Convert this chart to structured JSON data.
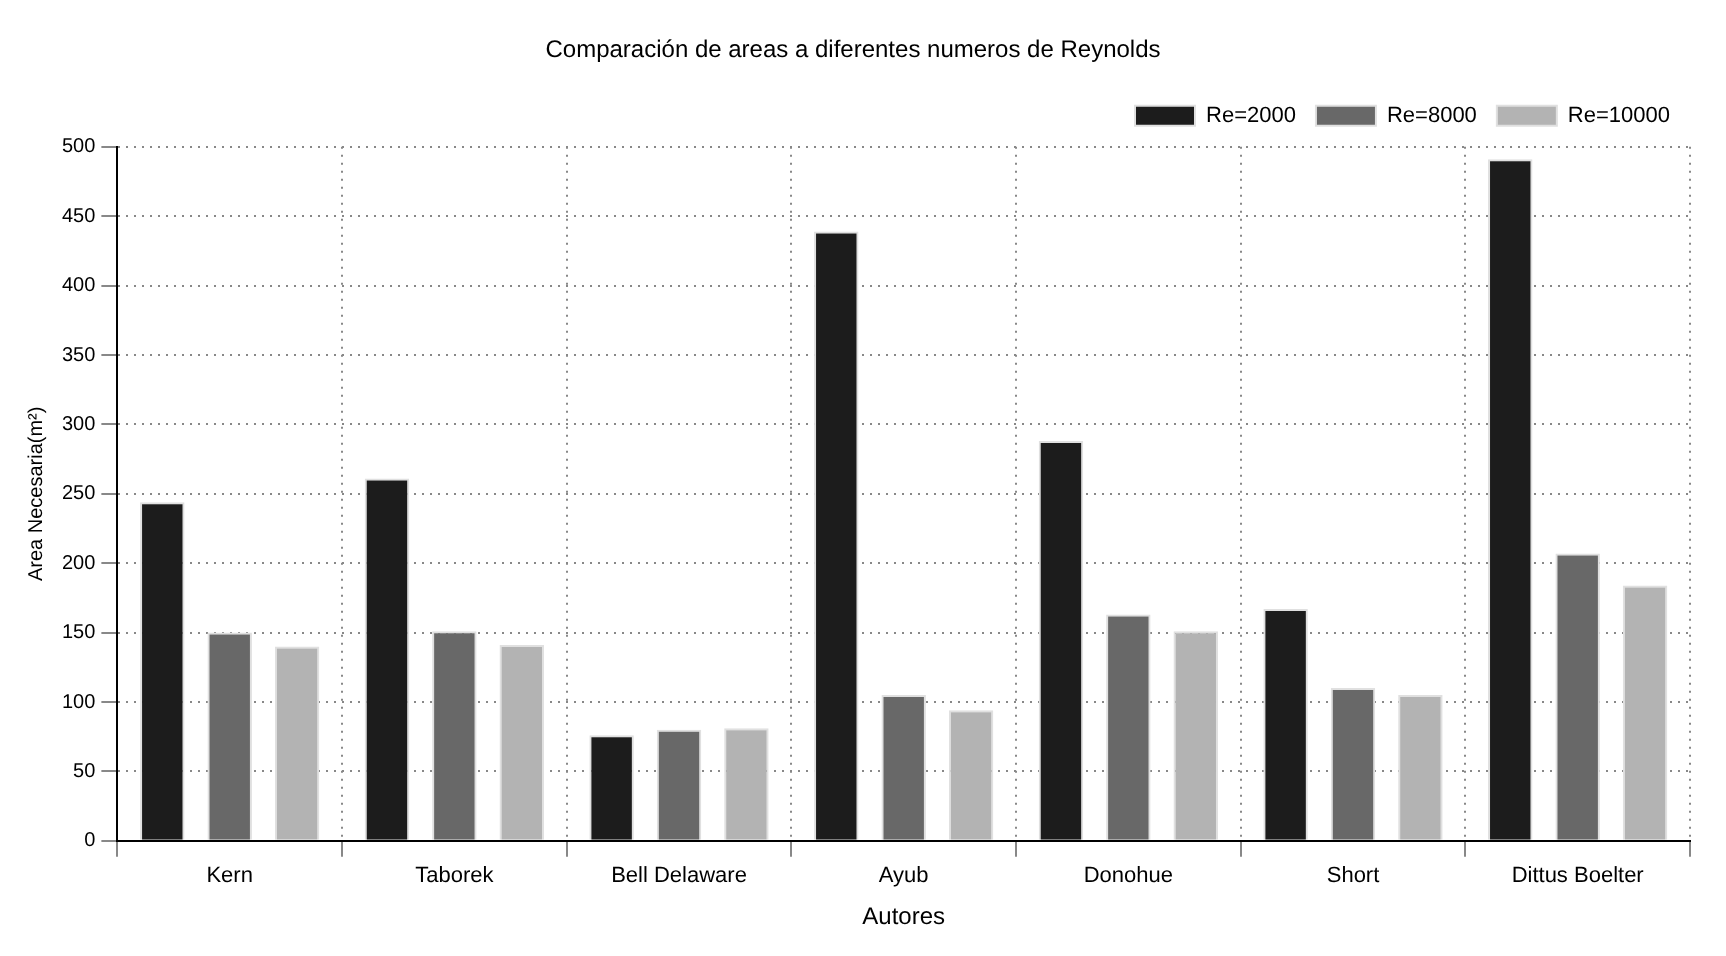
{
  "chart_data": {
    "type": "bar",
    "title": "Comparación de areas a diferentes numeros de Reynolds",
    "xlabel": "Autores",
    "ylabel": "Area Necesaria(m²)",
    "categories": [
      "Kern",
      "Taborek",
      "Bell Delaware",
      "Ayub",
      "Donohue",
      "Short",
      "Dittus Boelter"
    ],
    "series": [
      {
        "name": "Re=2000",
        "color": "#1c1c1c",
        "values": [
          244,
          261,
          76,
          439,
          288,
          167,
          491
        ]
      },
      {
        "name": "Re=8000",
        "color": "#686868",
        "values": [
          150,
          151,
          80,
          105,
          163,
          110,
          207
        ]
      },
      {
        "name": "Re=10000",
        "color": "#b3b3b3",
        "values": [
          140,
          141,
          81,
          94,
          151,
          105,
          184
        ]
      }
    ],
    "ylim": [
      0,
      500
    ],
    "yticks": [
      0,
      50,
      100,
      150,
      200,
      250,
      300,
      350,
      400,
      450,
      500
    ],
    "grid": true,
    "legend": "top right"
  }
}
